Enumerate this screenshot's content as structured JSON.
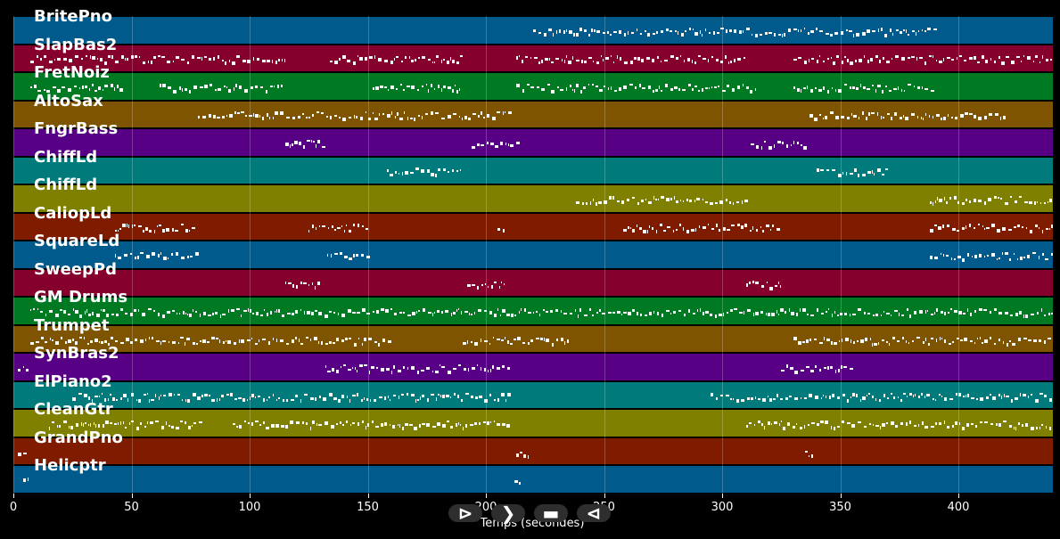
{
  "tracks": [
    {
      "name": "BritePno",
      "color": "#005a8c"
    },
    {
      "name": "SlapBas2",
      "color": "#86002e"
    },
    {
      "name": "FretNoiz",
      "color": "#007a22"
    },
    {
      "name": "AltoSax",
      "color": "#7f5400"
    },
    {
      "name": "FngrBass",
      "color": "#580085"
    },
    {
      "name": "ChiffLd",
      "color": "#007a7a"
    },
    {
      "name": "ChiffLd",
      "color": "#7f7f00"
    },
    {
      "name": "CaliopLd",
      "color": "#7f1c00"
    },
    {
      "name": "SquareLd",
      "color": "#005a8c"
    },
    {
      "name": "SweepPd",
      "color": "#86002e"
    },
    {
      "name": "GM Drums",
      "color": "#007a22"
    },
    {
      "name": "Trumpet",
      "color": "#7f5400"
    },
    {
      "name": "SynBras2",
      "color": "#580085"
    },
    {
      "name": "ElPiano2",
      "color": "#007a7a"
    },
    {
      "name": "CleanGtr",
      "color": "#7f7f00"
    },
    {
      "name": "GrandPno",
      "color": "#7f1c00"
    },
    {
      "name": "Helicptr",
      "color": "#005a8c"
    }
  ],
  "x_axis": {
    "label": "Temps (secondes)",
    "min": 0,
    "max": 440,
    "ticks": [
      "0",
      "50",
      "100",
      "150",
      "200",
      "250",
      "300",
      "350",
      "400"
    ]
  },
  "activity": [
    [
      [
        220,
        390
      ]
    ],
    [
      [
        7,
        115
      ],
      [
        134,
        190
      ],
      [
        213,
        310
      ],
      [
        330,
        440
      ]
    ],
    [
      [
        7,
        45
      ],
      [
        62,
        115
      ],
      [
        152,
        190
      ],
      [
        213,
        315
      ],
      [
        330,
        390
      ]
    ],
    [
      [
        78,
        210
      ],
      [
        337,
        420
      ]
    ],
    [
      [
        115,
        133
      ],
      [
        194,
        215
      ],
      [
        312,
        335
      ]
    ],
    [
      [
        158,
        190
      ],
      [
        340,
        370
      ]
    ],
    [
      [
        238,
        310
      ],
      [
        388,
        440
      ]
    ],
    [
      [
        43,
        78
      ],
      [
        125,
        150
      ],
      [
        205,
        208
      ],
      [
        258,
        325
      ],
      [
        388,
        440
      ]
    ],
    [
      [
        43,
        78
      ],
      [
        133,
        150
      ],
      [
        388,
        440
      ]
    ],
    [
      [
        115,
        130
      ],
      [
        192,
        208
      ],
      [
        310,
        325
      ]
    ],
    [
      [
        7,
        440
      ]
    ],
    [
      [
        7,
        160
      ],
      [
        190,
        235
      ],
      [
        330,
        440
      ]
    ],
    [
      [
        2,
        6
      ],
      [
        132,
        210
      ],
      [
        325,
        355
      ]
    ],
    [
      [
        25,
        210
      ],
      [
        295,
        440
      ]
    ],
    [
      [
        15,
        80
      ],
      [
        93,
        210
      ],
      [
        310,
        440
      ]
    ],
    [
      [
        2,
        6
      ],
      [
        213,
        218
      ],
      [
        335,
        338
      ]
    ],
    [
      [
        4,
        6
      ],
      [
        212,
        215
      ]
    ]
  ],
  "controls": [
    {
      "name": "play-button",
      "glyph": "⊳"
    },
    {
      "name": "forward-button",
      "glyph": "❯"
    },
    {
      "name": "stop-button",
      "glyph": "▬"
    },
    {
      "name": "back-button",
      "glyph": "⊲"
    }
  ]
}
